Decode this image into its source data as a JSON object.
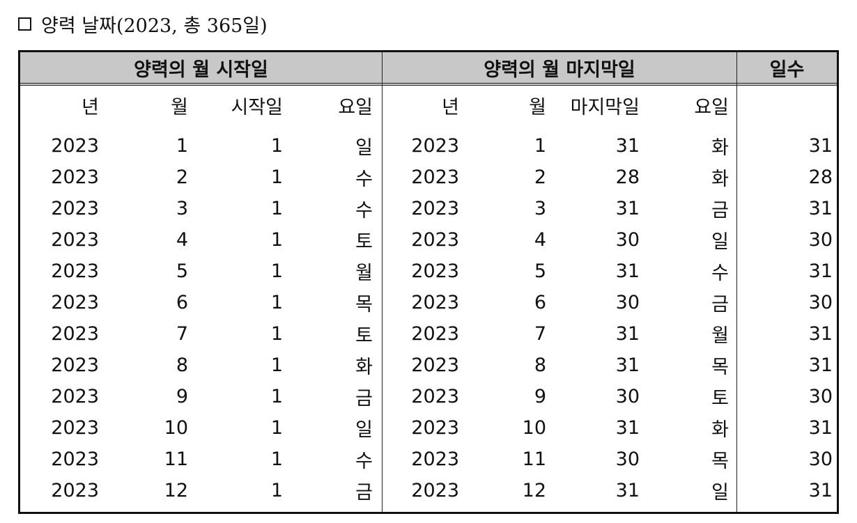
{
  "title": {
    "text": "양력 날짜(2023, 총 365일)"
  },
  "table": {
    "group_headers": {
      "start": "양력의 월 시작일",
      "end": "양력의 월 마지막일",
      "days": "일수"
    },
    "columns": {
      "year": "년",
      "month": "월",
      "start_day": "시작일",
      "start_weekday": "요일",
      "end_year": "년",
      "end_month": "월",
      "last_day": "마지막일",
      "end_weekday": "요일"
    },
    "rows": [
      {
        "year": "2023",
        "month": "1",
        "start_day": "1",
        "start_weekday": "일",
        "end_year": "2023",
        "end_month": "1",
        "last_day": "31",
        "end_weekday": "화",
        "days": "31"
      },
      {
        "year": "2023",
        "month": "2",
        "start_day": "1",
        "start_weekday": "수",
        "end_year": "2023",
        "end_month": "2",
        "last_day": "28",
        "end_weekday": "화",
        "days": "28"
      },
      {
        "year": "2023",
        "month": "3",
        "start_day": "1",
        "start_weekday": "수",
        "end_year": "2023",
        "end_month": "3",
        "last_day": "31",
        "end_weekday": "금",
        "days": "31"
      },
      {
        "year": "2023",
        "month": "4",
        "start_day": "1",
        "start_weekday": "토",
        "end_year": "2023",
        "end_month": "4",
        "last_day": "30",
        "end_weekday": "일",
        "days": "30"
      },
      {
        "year": "2023",
        "month": "5",
        "start_day": "1",
        "start_weekday": "월",
        "end_year": "2023",
        "end_month": "5",
        "last_day": "31",
        "end_weekday": "수",
        "days": "31"
      },
      {
        "year": "2023",
        "month": "6",
        "start_day": "1",
        "start_weekday": "목",
        "end_year": "2023",
        "end_month": "6",
        "last_day": "30",
        "end_weekday": "금",
        "days": "30"
      },
      {
        "year": "2023",
        "month": "7",
        "start_day": "1",
        "start_weekday": "토",
        "end_year": "2023",
        "end_month": "7",
        "last_day": "31",
        "end_weekday": "월",
        "days": "31"
      },
      {
        "year": "2023",
        "month": "8",
        "start_day": "1",
        "start_weekday": "화",
        "end_year": "2023",
        "end_month": "8",
        "last_day": "31",
        "end_weekday": "목",
        "days": "31"
      },
      {
        "year": "2023",
        "month": "9",
        "start_day": "1",
        "start_weekday": "금",
        "end_year": "2023",
        "end_month": "9",
        "last_day": "30",
        "end_weekday": "토",
        "days": "30"
      },
      {
        "year": "2023",
        "month": "10",
        "start_day": "1",
        "start_weekday": "일",
        "end_year": "2023",
        "end_month": "10",
        "last_day": "31",
        "end_weekday": "화",
        "days": "31"
      },
      {
        "year": "2023",
        "month": "11",
        "start_day": "1",
        "start_weekday": "수",
        "end_year": "2023",
        "end_month": "11",
        "last_day": "30",
        "end_weekday": "목",
        "days": "30"
      },
      {
        "year": "2023",
        "month": "12",
        "start_day": "1",
        "start_weekday": "금",
        "end_year": "2023",
        "end_month": "12",
        "last_day": "31",
        "end_weekday": "일",
        "days": "31"
      }
    ]
  }
}
